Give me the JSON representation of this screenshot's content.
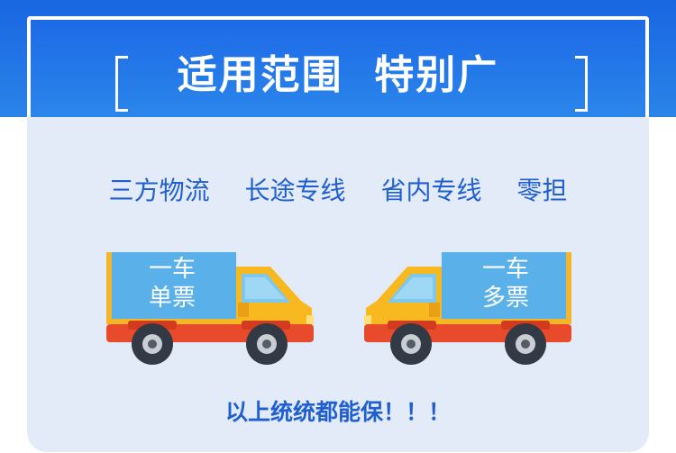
{
  "header": {
    "title": "适用范围  特别广"
  },
  "services": [
    "三方物流",
    "长途专线",
    "省内专线",
    "零担"
  ],
  "trucks": [
    {
      "line1": "一车",
      "line2": "单票"
    },
    {
      "line1": "一车",
      "line2": "多票"
    }
  ],
  "footer": {
    "text": "以上统统都能保！！！"
  },
  "colors": {
    "brand_blue": "#1d6ae6",
    "card_bg": "#e3ebf9",
    "text_blue": "#1f5fd0",
    "truck_yellow": "#f8b820",
    "truck_box": "#5ab0e8",
    "truck_red": "#e84a2c"
  }
}
